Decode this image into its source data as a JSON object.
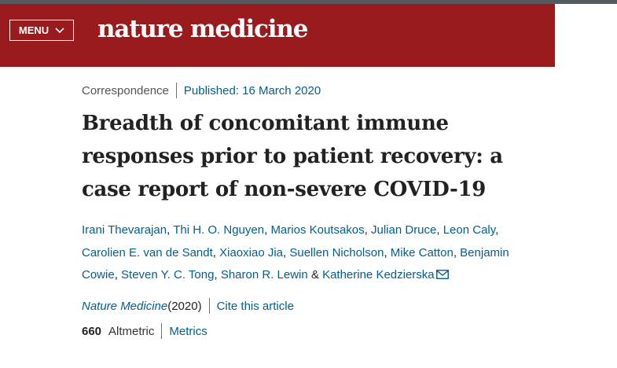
{
  "header": {
    "menu_label": "MENU",
    "logo_text": "nature medicine",
    "brand_color": "#991b1e"
  },
  "article": {
    "type": "Correspondence",
    "published": "Published: 16 March 2020",
    "title": "Breadth of concomitant immune responses prior to patient recovery: a case report of non-severe COVID-19",
    "authors": [
      "Irani Thevarajan",
      "Thi H. O. Nguyen",
      "Marios Koutsakos",
      "Julian Druce",
      "Leon Caly",
      "Carolien E. van de Sandt",
      "Xiaoxiao Jia",
      "Suellen Nicholson",
      "Mike Catton",
      "Benjamin Cowie",
      "Steven Y. C. Tong",
      "Sharon R. Lewin",
      "Katherine Kedzierska"
    ],
    "author_separator": ", ",
    "author_last_separator": " & ",
    "journal": "Nature Medicine",
    "year": " (2020)",
    "cite_label": "Cite this article",
    "altmetric_score": "660",
    "altmetric_label": "Altmetric",
    "metrics_label": "Metrics",
    "link_color": "#025e8d",
    "mail_icon": "envelope-icon"
  }
}
